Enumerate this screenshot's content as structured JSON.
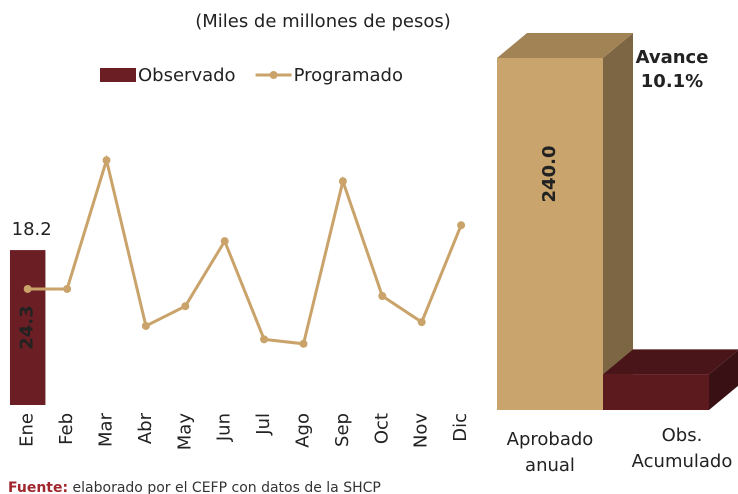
{
  "chart_data": [
    {
      "type": "bar-line",
      "subtitle": "(Miles de millones de pesos)",
      "categories": [
        "Ene",
        "Feb",
        "Mar",
        "Abr",
        "May",
        "Jun",
        "Jul",
        "Ago",
        "Sep",
        "Oct",
        "Nov",
        "Dic"
      ],
      "ylim": [
        0,
        40
      ],
      "legend": "top",
      "series": [
        {
          "name": "Observado",
          "kind": "bar",
          "color": "#6b1f24",
          "values": [
            24.3,
            null,
            null,
            null,
            null,
            null,
            null,
            null,
            null,
            null,
            null,
            null
          ],
          "value_labels": [
            "24.3",
            null,
            null,
            null,
            null,
            null,
            null,
            null,
            null,
            null,
            null,
            null
          ]
        },
        {
          "name": "Programado",
          "kind": "line",
          "color": "#c9a36a",
          "values": [
            18.2,
            18.2,
            38.4,
            12.4,
            15.5,
            25.7,
            10.3,
            9.6,
            35.1,
            17.1,
            13.0,
            28.2
          ],
          "value_labels": [
            "18.2",
            null,
            null,
            null,
            null,
            null,
            null,
            null,
            null,
            null,
            null,
            null
          ]
        }
      ]
    },
    {
      "type": "bar3d",
      "categories": [
        "Aprobado anual",
        "Obs. Acumulado"
      ],
      "values": [
        240,
        24.3
      ],
      "value_labels": [
        "240.0",
        null
      ],
      "colors": [
        "#c9a46c",
        "#5c1a1e"
      ],
      "ylim": [
        0,
        240
      ],
      "annotation": [
        "Avance",
        "10.1%"
      ]
    }
  ],
  "source": {
    "label": "Fuente:",
    "text": "elaborado por el CEFP con datos de la SHCP"
  }
}
